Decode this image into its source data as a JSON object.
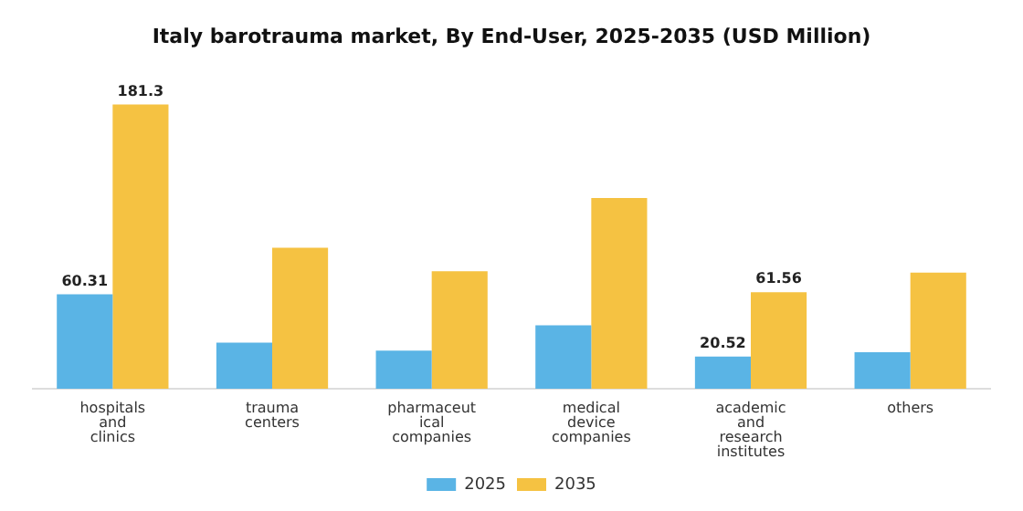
{
  "chart_data": {
    "type": "bar",
    "title": "Italy barotrauma market, By End-User, 2025-2035 (USD Million)",
    "categories": [
      "hospitals and clinics",
      "trauma centers",
      "pharmaceutical companies",
      "medical device companies",
      "academic and research institutes",
      "others"
    ],
    "series": [
      {
        "name": "2025",
        "color": "#5ab4e5",
        "values": [
          60.31,
          29.4,
          24.3,
          40.5,
          20.52,
          23.3
        ],
        "value_labels": [
          "60.31",
          null,
          null,
          null,
          "20.52",
          null
        ]
      },
      {
        "name": "2035",
        "color": "#f5c242",
        "values": [
          181.3,
          90,
          75,
          121.6,
          61.56,
          74
        ],
        "value_labels": [
          "181.3",
          null,
          null,
          null,
          "61.56",
          null
        ]
      }
    ],
    "legend": "bottom",
    "grid": false
  }
}
